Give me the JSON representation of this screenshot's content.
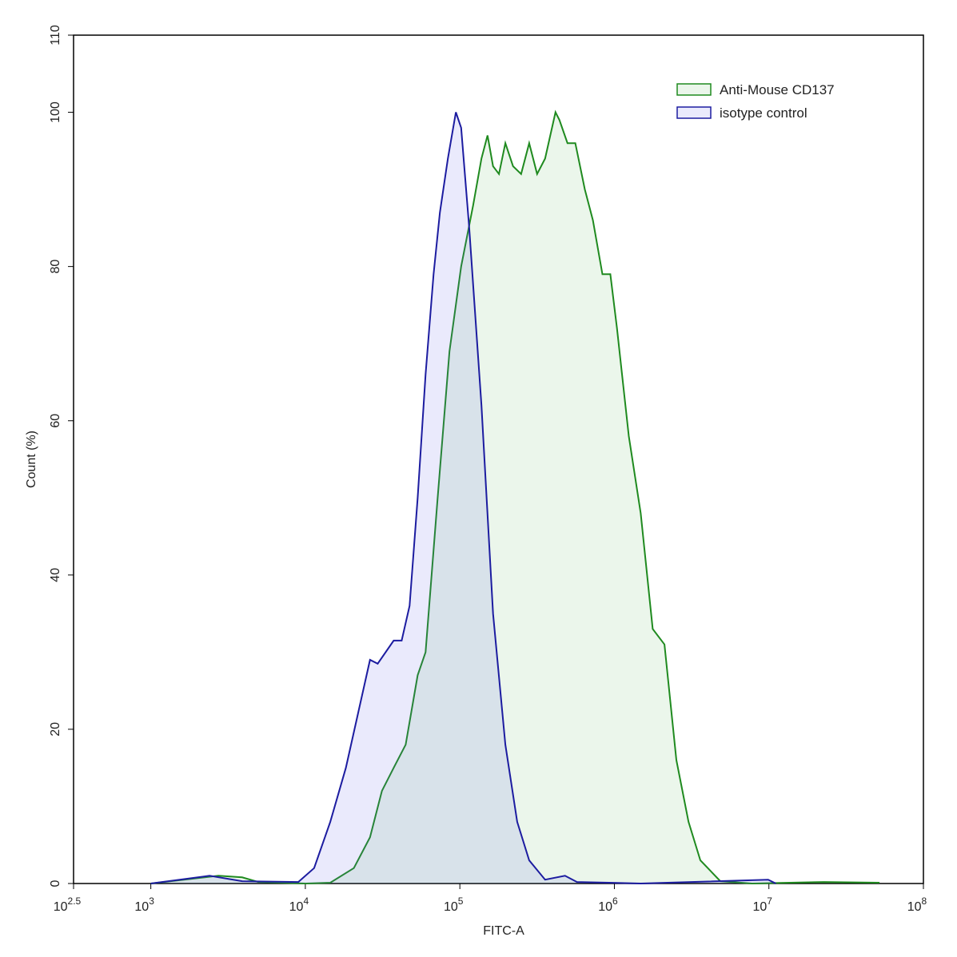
{
  "chart_data": {
    "type": "area",
    "x_label": "FITC-A",
    "y_label": "Count (%)",
    "xlog": true,
    "xlim": [
      316.23,
      100000000
    ],
    "ylim": [
      0,
      110
    ],
    "xticks": [
      {
        "value": 316.23,
        "label": "10",
        "power": "2.5"
      },
      {
        "value": 1000,
        "label": "10",
        "power": "3"
      },
      {
        "value": 10000,
        "label": "10",
        "power": "4"
      },
      {
        "value": 100000,
        "label": "10",
        "power": "5"
      },
      {
        "value": 1000000,
        "label": "10",
        "power": "6"
      },
      {
        "value": 10000000,
        "label": "10",
        "power": "7"
      },
      {
        "value": 100000000,
        "label": "10",
        "power": "8"
      }
    ],
    "yticks": [
      0,
      20,
      40,
      60,
      80,
      100,
      110
    ],
    "legend": "upper right",
    "series": [
      {
        "name": "Anti-Mouse CD137",
        "color": "#1f8a1f",
        "fill": "rgba(60,170,60,0.10)",
        "x": [
          1000,
          2740,
          3900,
          4960,
          10100,
          14500,
          20600,
          26200,
          31300,
          37300,
          44600,
          53300,
          60000,
          71800,
          85700,
          102000,
          122000,
          138000,
          151000,
          164000,
          179000,
          197000,
          221000,
          249000,
          281000,
          316000,
          356000,
          416000,
          441000,
          497000,
          559000,
          644000,
          726000,
          837000,
          942000,
          1040000,
          1240000,
          1480000,
          1770000,
          2110000,
          2520000,
          3020000,
          3600000,
          4850000,
          7800000,
          22700000,
          52000000
        ],
        "values": [
          0,
          1,
          0.8,
          0.2,
          0,
          0.1,
          2,
          6,
          12,
          15,
          18,
          27,
          30,
          50,
          69,
          80,
          88,
          94,
          97,
          93,
          92,
          96,
          93,
          92,
          96,
          92,
          94,
          100,
          99,
          96,
          96,
          90,
          86,
          79,
          79,
          72,
          58,
          48,
          33,
          31,
          16,
          8,
          3,
          0.3,
          0,
          0.2,
          0.1
        ]
      },
      {
        "name": "isotype control",
        "color": "#1c1ca0",
        "fill": "rgba(90,90,230,0.13)",
        "x": [
          1000,
          2400,
          3900,
          9000,
          11400,
          14500,
          18300,
          21900,
          26200,
          29400,
          37300,
          42000,
          47300,
          53300,
          60000,
          67600,
          74300,
          83700,
          94200,
          102000,
          115000,
          138000,
          164000,
          197000,
          235000,
          281000,
          356000,
          479000,
          573000,
          920000,
          1480000,
          9890000,
          11100000
        ],
        "values": [
          0,
          1,
          0.3,
          0.2,
          2,
          8,
          15,
          22,
          29,
          28.5,
          31.5,
          31.5,
          36,
          50,
          66,
          79,
          87,
          94,
          100,
          98,
          85,
          62,
          35,
          18,
          8,
          3,
          0.5,
          1,
          0.2,
          0.1,
          0,
          0.5,
          0
        ]
      }
    ]
  }
}
